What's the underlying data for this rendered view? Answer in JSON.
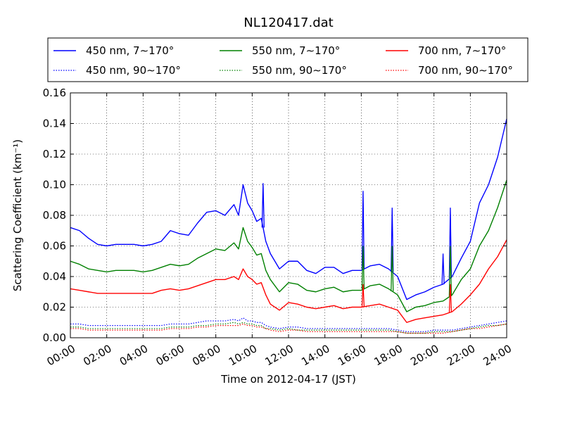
{
  "chart_data": {
    "type": "line",
    "title": "NL120417.dat",
    "xlabel": "Time on 2012-04-17 (JST)",
    "ylabel": "Scattering Coefficient (km⁻¹)",
    "xlim": [
      0,
      24
    ],
    "ylim": [
      0,
      0.16
    ],
    "grid": true,
    "legend_position": "top",
    "x_tick_labels": [
      "00:00",
      "02:00",
      "04:00",
      "06:00",
      "08:00",
      "10:00",
      "12:00",
      "14:00",
      "16:00",
      "18:00",
      "20:00",
      "22:00",
      "24:00"
    ],
    "y_ticks": [
      0.0,
      0.02,
      0.04,
      0.06,
      0.08,
      0.1,
      0.12,
      0.14,
      0.16
    ],
    "y_tick_labels": [
      "0.00",
      "0.02",
      "0.04",
      "0.06",
      "0.08",
      "0.10",
      "0.12",
      "0.14",
      "0.16"
    ],
    "x": [
      0,
      0.5,
      1,
      1.5,
      2,
      2.5,
      3,
      3.5,
      4,
      4.5,
      5,
      5.5,
      6,
      6.5,
      7,
      7.5,
      8,
      8.5,
      9,
      9.25,
      9.5,
      9.75,
      10,
      10.25,
      10.5,
      10.75,
      11,
      11.5,
      12,
      12.5,
      13,
      13.5,
      14,
      14.5,
      15,
      15.5,
      16,
      16.5,
      17,
      17.5,
      18,
      18.5,
      19,
      19.5,
      20,
      20.5,
      21,
      21.5,
      22,
      22.5,
      23,
      23.5,
      24
    ],
    "series": [
      {
        "name": "450 nm, 7∼170°",
        "color": "#0000ff",
        "style": "solid",
        "values": [
          0.072,
          0.07,
          0.065,
          0.061,
          0.06,
          0.061,
          0.061,
          0.061,
          0.06,
          0.061,
          0.063,
          0.07,
          0.068,
          0.067,
          0.075,
          0.082,
          0.083,
          0.08,
          0.087,
          0.08,
          0.1,
          0.088,
          0.083,
          0.076,
          0.078,
          0.063,
          0.055,
          0.045,
          0.05,
          0.05,
          0.044,
          0.042,
          0.046,
          0.046,
          0.042,
          0.044,
          0.044,
          0.047,
          0.048,
          0.045,
          0.04,
          0.025,
          0.028,
          0.03,
          0.033,
          0.035,
          0.04,
          0.052,
          0.063,
          0.088,
          0.1,
          0.118,
          0.143
        ]
      },
      {
        "name": "550 nm, 7∼170°",
        "color": "#008000",
        "style": "solid",
        "values": [
          0.05,
          0.048,
          0.045,
          0.044,
          0.043,
          0.044,
          0.044,
          0.044,
          0.043,
          0.044,
          0.046,
          0.048,
          0.047,
          0.048,
          0.052,
          0.055,
          0.058,
          0.057,
          0.062,
          0.058,
          0.072,
          0.063,
          0.059,
          0.054,
          0.055,
          0.044,
          0.038,
          0.03,
          0.036,
          0.035,
          0.031,
          0.03,
          0.032,
          0.033,
          0.03,
          0.031,
          0.031,
          0.034,
          0.035,
          0.032,
          0.028,
          0.017,
          0.02,
          0.021,
          0.023,
          0.024,
          0.028,
          0.038,
          0.045,
          0.06,
          0.07,
          0.085,
          0.103
        ]
      },
      {
        "name": "700 nm, 7∼170°",
        "color": "#ff0000",
        "style": "solid",
        "values": [
          0.032,
          0.031,
          0.03,
          0.029,
          0.029,
          0.029,
          0.029,
          0.029,
          0.029,
          0.029,
          0.031,
          0.032,
          0.031,
          0.032,
          0.034,
          0.036,
          0.038,
          0.038,
          0.04,
          0.038,
          0.045,
          0.04,
          0.038,
          0.035,
          0.036,
          0.028,
          0.022,
          0.018,
          0.023,
          0.022,
          0.02,
          0.019,
          0.02,
          0.021,
          0.019,
          0.02,
          0.02,
          0.021,
          0.022,
          0.02,
          0.018,
          0.01,
          0.012,
          0.013,
          0.014,
          0.015,
          0.017,
          0.022,
          0.028,
          0.035,
          0.045,
          0.053,
          0.064
        ]
      },
      {
        "name": "450 nm, 90∼170°",
        "color": "#0000ff",
        "style": "dotted",
        "values": [
          0.009,
          0.009,
          0.008,
          0.008,
          0.008,
          0.008,
          0.008,
          0.008,
          0.008,
          0.008,
          0.008,
          0.009,
          0.009,
          0.009,
          0.01,
          0.011,
          0.011,
          0.011,
          0.012,
          0.011,
          0.013,
          0.011,
          0.011,
          0.01,
          0.01,
          0.008,
          0.007,
          0.006,
          0.007,
          0.007,
          0.006,
          0.006,
          0.006,
          0.006,
          0.006,
          0.006,
          0.006,
          0.006,
          0.006,
          0.006,
          0.005,
          0.004,
          0.004,
          0.004,
          0.005,
          0.005,
          0.005,
          0.006,
          0.007,
          0.008,
          0.009,
          0.01,
          0.011
        ]
      },
      {
        "name": "550 nm, 90∼170°",
        "color": "#008000",
        "style": "dotted",
        "values": [
          0.007,
          0.007,
          0.006,
          0.006,
          0.006,
          0.006,
          0.006,
          0.006,
          0.006,
          0.006,
          0.006,
          0.007,
          0.007,
          0.007,
          0.008,
          0.008,
          0.009,
          0.009,
          0.01,
          0.009,
          0.01,
          0.009,
          0.009,
          0.008,
          0.008,
          0.006,
          0.006,
          0.005,
          0.006,
          0.005,
          0.005,
          0.005,
          0.005,
          0.005,
          0.005,
          0.005,
          0.005,
          0.005,
          0.005,
          0.005,
          0.004,
          0.003,
          0.003,
          0.003,
          0.004,
          0.004,
          0.004,
          0.005,
          0.006,
          0.007,
          0.008,
          0.008,
          0.009
        ]
      },
      {
        "name": "700 nm, 90∼170°",
        "color": "#ff0000",
        "style": "dotted",
        "values": [
          0.006,
          0.006,
          0.005,
          0.005,
          0.005,
          0.005,
          0.005,
          0.005,
          0.005,
          0.005,
          0.005,
          0.006,
          0.006,
          0.006,
          0.007,
          0.007,
          0.008,
          0.008,
          0.008,
          0.008,
          0.009,
          0.008,
          0.008,
          0.007,
          0.007,
          0.006,
          0.005,
          0.004,
          0.005,
          0.005,
          0.004,
          0.004,
          0.004,
          0.004,
          0.004,
          0.004,
          0.004,
          0.004,
          0.004,
          0.004,
          0.004,
          0.003,
          0.003,
          0.003,
          0.003,
          0.003,
          0.004,
          0.005,
          0.006,
          0.006,
          0.007,
          0.008,
          0.009
        ]
      }
    ],
    "spikes": [
      {
        "series": 0,
        "x": 10.6,
        "y": 0.101
      },
      {
        "series": 0,
        "x": 16.1,
        "y": 0.096
      },
      {
        "series": 0,
        "x": 17.7,
        "y": 0.085
      },
      {
        "series": 0,
        "x": 20.9,
        "y": 0.085
      },
      {
        "series": 0,
        "x": 20.5,
        "y": 0.055
      },
      {
        "series": 1,
        "x": 16.1,
        "y": 0.06
      },
      {
        "series": 1,
        "x": 17.7,
        "y": 0.06
      },
      {
        "series": 1,
        "x": 20.9,
        "y": 0.06
      },
      {
        "series": 2,
        "x": 16.1,
        "y": 0.035
      },
      {
        "series": 2,
        "x": 20.9,
        "y": 0.035
      }
    ]
  }
}
